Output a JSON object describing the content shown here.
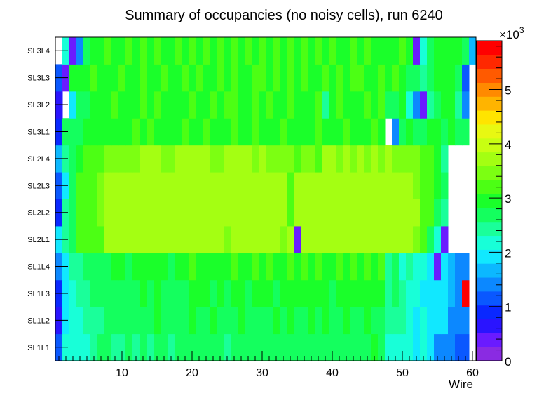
{
  "chart_data": {
    "type": "heatmap",
    "title": "Summary of occupancies (no noisy cells), run 6240",
    "xlabel": "Wire",
    "ylabel": "",
    "xlim": [
      0.5,
      60.5
    ],
    "x_ticks": [
      10,
      20,
      30,
      40,
      50,
      60
    ],
    "y_categories": [
      "SL1L1",
      "SL1L2",
      "SL1L3",
      "SL1L4",
      "SL2L1",
      "SL2L2",
      "SL2L3",
      "SL2L4",
      "SL3L1",
      "SL3L2",
      "SL3L3",
      "SL3L4"
    ],
    "colorbar": {
      "min": 0,
      "max": 5900,
      "ticks": [
        0,
        1,
        2,
        3,
        4,
        5
      ],
      "multiplier_label": "×10",
      "multiplier_exponent": "3"
    },
    "values": [
      [
        1100,
        2100,
        2300,
        2300,
        2300,
        2400,
        2600,
        2600,
        2400,
        2500,
        2600,
        2500,
        2600,
        2400,
        2600,
        2600,
        2400,
        2700,
        2600,
        2700,
        2800,
        2700,
        2600,
        2700,
        2500,
        2800,
        2600,
        2600,
        2700,
        2800,
        2700,
        2600,
        2700,
        2700,
        2700,
        2800,
        2700,
        2800,
        2800,
        2600,
        2700,
        2800,
        2800,
        2700,
        2800,
        2900,
        2700,
        2300,
        2300,
        2300,
        2300,
        2000,
        2100,
        1800,
        1300,
        1300,
        1300,
        1100,
        1100,
        null
      ],
      [
        600,
        1800,
        2200,
        2300,
        2400,
        2500,
        2500,
        2600,
        2700,
        2800,
        2600,
        2800,
        2700,
        2800,
        2900,
        2800,
        2700,
        2800,
        2800,
        2900,
        2800,
        2700,
        2900,
        2800,
        2700,
        2800,
        2900,
        2800,
        2800,
        2700,
        2800,
        2900,
        2800,
        2900,
        2800,
        2800,
        2900,
        2800,
        2900,
        2800,
        2800,
        2900,
        2800,
        2800,
        2900,
        2800,
        2800,
        2400,
        2500,
        2500,
        2300,
        2000,
        2100,
        2000,
        1800,
        1800,
        1300,
        1300,
        1300,
        null
      ],
      [
        800,
        1800,
        2200,
        2400,
        2500,
        2600,
        2600,
        2700,
        2700,
        2800,
        2700,
        2800,
        2900,
        2800,
        2900,
        2800,
        2700,
        2800,
        2800,
        2900,
        3000,
        2900,
        2800,
        2900,
        2800,
        3000,
        2900,
        2800,
        2900,
        3000,
        2900,
        2800,
        2900,
        3000,
        2900,
        3000,
        2900,
        2900,
        3000,
        2800,
        2900,
        3000,
        3000,
        2900,
        3000,
        2900,
        3000,
        2500,
        2600,
        2400,
        2300,
        2100,
        1800,
        1800,
        1800,
        1800,
        1600,
        1400,
        5800,
        null
      ],
      [
        1500,
        2000,
        2400,
        2500,
        2600,
        2700,
        2800,
        2800,
        2900,
        3000,
        2800,
        3000,
        2900,
        3000,
        2900,
        3000,
        2800,
        3000,
        2900,
        3100,
        3000,
        2900,
        3000,
        2900,
        3000,
        3100,
        2900,
        3000,
        3100,
        3000,
        3100,
        2900,
        3000,
        3100,
        3000,
        3100,
        3000,
        3100,
        3000,
        3000,
        3100,
        3000,
        3100,
        3000,
        3100,
        3000,
        3100,
        2400,
        2600,
        2300,
        2400,
        2300,
        2200,
        2000,
        300,
        1800,
        1700,
        1500,
        1300,
        null
      ],
      [
        2000,
        2500,
        2700,
        3100,
        3200,
        3200,
        3300,
        3600,
        3600,
        3600,
        3600,
        3600,
        3600,
        3600,
        3700,
        3600,
        3600,
        3700,
        3600,
        3600,
        3700,
        3700,
        3600,
        3600,
        3500,
        3600,
        3600,
        3700,
        3600,
        3600,
        3600,
        3600,
        3500,
        3600,
        400,
        3600,
        3700,
        3700,
        3600,
        3600,
        3700,
        3600,
        3600,
        3600,
        3600,
        3600,
        3600,
        3600,
        3600,
        3600,
        3600,
        3500,
        3200,
        2700,
        2300,
        400,
        null,
        null,
        null,
        null
      ],
      [
        800,
        2400,
        2700,
        3100,
        3200,
        3300,
        3400,
        3600,
        3600,
        3700,
        3600,
        3700,
        3700,
        3600,
        3700,
        3700,
        3600,
        3700,
        3800,
        3700,
        3800,
        3700,
        3600,
        3700,
        3600,
        3800,
        3700,
        3700,
        3600,
        3700,
        3700,
        3600,
        3700,
        3200,
        3600,
        3600,
        3700,
        3700,
        3800,
        3600,
        3700,
        3600,
        3700,
        3600,
        3600,
        3700,
        3600,
        3700,
        3600,
        3600,
        3600,
        3600,
        3300,
        3100,
        2800,
        2500,
        null,
        null,
        null,
        null
      ],
      [
        1200,
        1800,
        2700,
        3100,
        3200,
        3300,
        3400,
        3600,
        3600,
        3600,
        3700,
        3600,
        3700,
        3600,
        3800,
        3600,
        3600,
        3700,
        3800,
        3800,
        3700,
        3600,
        3700,
        3600,
        3700,
        3800,
        3600,
        3700,
        3600,
        3800,
        3700,
        3600,
        3600,
        3200,
        3600,
        3600,
        3700,
        3600,
        3800,
        3700,
        3600,
        3700,
        3600,
        3700,
        3600,
        3700,
        3600,
        3700,
        3600,
        3600,
        3600,
        3500,
        3200,
        3100,
        2900,
        2700,
        null,
        null,
        null,
        null
      ],
      [
        1600,
        2500,
        2700,
        3000,
        3100,
        3200,
        3300,
        3500,
        3500,
        3500,
        3500,
        3500,
        3600,
        3600,
        3600,
        3500,
        3500,
        3600,
        3700,
        3700,
        3700,
        3600,
        3500,
        3500,
        3600,
        3700,
        3600,
        3700,
        3500,
        3600,
        3500,
        3500,
        3500,
        3500,
        3100,
        3500,
        3500,
        3200,
        3700,
        3600,
        3500,
        3600,
        3500,
        3600,
        3500,
        3600,
        3500,
        3600,
        3500,
        3500,
        3500,
        3500,
        3200,
        3100,
        2900,
        2400,
        null,
        null,
        null,
        null
      ],
      [
        1000,
        2700,
        2600,
        2800,
        2900,
        3000,
        2900,
        3000,
        3000,
        2900,
        3000,
        3100,
        3000,
        3100,
        3000,
        2900,
        3000,
        3000,
        3100,
        3000,
        2900,
        3100,
        3000,
        2900,
        3000,
        3100,
        3000,
        2900,
        3100,
        3000,
        2900,
        3000,
        3100,
        3000,
        2900,
        3000,
        3000,
        3100,
        3000,
        2900,
        3000,
        3100,
        3000,
        2900,
        3000,
        3100,
        2900,
        null,
        1500,
        2600,
        2900,
        2700,
        2700,
        2900,
        2900,
        2800,
        2900,
        2800,
        2600,
        null
      ],
      [
        700,
        null,
        1900,
        2800,
        2800,
        3000,
        2900,
        3000,
        3100,
        3000,
        3000,
        2900,
        3300,
        2900,
        3100,
        3000,
        2900,
        2900,
        3000,
        3100,
        3000,
        2900,
        3100,
        3000,
        3100,
        3300,
        2900,
        3000,
        3200,
        3000,
        3100,
        2900,
        3000,
        3200,
        3000,
        2900,
        3000,
        3100,
        2500,
        3000,
        3100,
        3000,
        2900,
        3000,
        3100,
        3000,
        3100,
        2600,
        2800,
        2900,
        2300,
        1300,
        300,
        2400,
        2800,
        2900,
        2900,
        2500,
        1300,
        null
      ],
      [
        1100,
        400,
        2900,
        3000,
        3000,
        3100,
        3000,
        3000,
        2900,
        3100,
        3000,
        2900,
        3100,
        3000,
        2900,
        3100,
        3000,
        2900,
        3100,
        3000,
        3100,
        2900,
        3000,
        3100,
        3000,
        3200,
        3000,
        3000,
        3100,
        3200,
        3000,
        3100,
        3000,
        3100,
        3000,
        3100,
        3000,
        2900,
        3100,
        3000,
        3100,
        3000,
        3100,
        3100,
        2900,
        3000,
        3100,
        2900,
        3100,
        2900,
        2600,
        2700,
        2500,
        2800,
        2900,
        2900,
        3000,
        2700,
        1100,
        null
      ],
      [
        null,
        2200,
        400,
        1300,
        2700,
        3000,
        3000,
        3100,
        3000,
        3000,
        3100,
        3000,
        3100,
        3000,
        3100,
        3000,
        2900,
        3100,
        3000,
        3100,
        3000,
        3100,
        3000,
        3100,
        3000,
        3100,
        3000,
        3100,
        3000,
        3200,
        3000,
        3100,
        3000,
        3100,
        3000,
        3100,
        3000,
        3100,
        3000,
        3100,
        3000,
        3000,
        3100,
        3000,
        3100,
        2900,
        3000,
        3000,
        2900,
        3100,
        3000,
        300,
        2300,
        2700,
        2900,
        2900,
        3000,
        2900,
        2700,
        1700
      ]
    ]
  }
}
